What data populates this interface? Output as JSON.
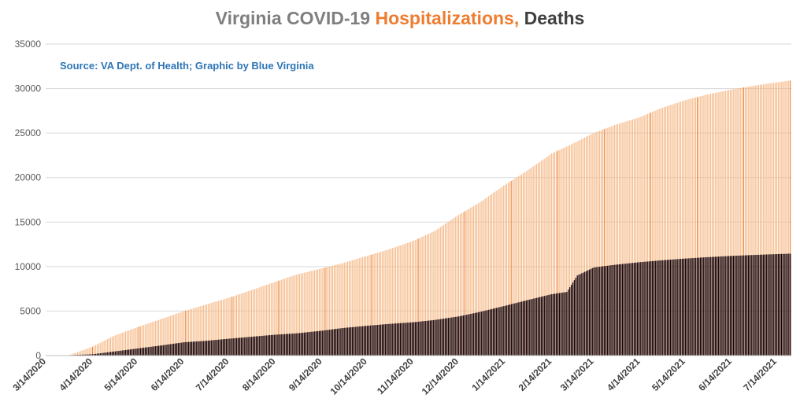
{
  "title": {
    "part1": "Virginia COVID-19 ",
    "part2": "Hospitalizations,",
    "part3": " Deaths"
  },
  "source": "Source: VA Dept. of Health; Graphic by Blue Virginia",
  "colors": {
    "title_gray": "#7f7f7f",
    "hospitalizations": "#ed7d31",
    "hospitalizations_light": "#f5b783",
    "deaths": "#1a0000",
    "source_blue": "#2e75b6",
    "dark_text": "#404040",
    "grid": "#d9d9d9"
  },
  "chart_data": {
    "type": "bar",
    "stacked": "overlapping",
    "title": "Virginia COVID-19 Hospitalizations, Deaths",
    "ylim": [
      0,
      35000
    ],
    "yticks": [
      0,
      5000,
      10000,
      15000,
      20000,
      25000,
      30000,
      35000
    ],
    "grid": true,
    "x_tick_labels": [
      "3/14/2020",
      "4/14/2020",
      "5/14/2020",
      "6/14/2020",
      "7/14/2020",
      "8/14/2020",
      "9/14/2020",
      "10/14/2020",
      "11/14/2020",
      "12/14/2020",
      "1/14/2021",
      "2/14/2021",
      "3/14/2021",
      "4/14/2021",
      "5/14/2021",
      "6/14/2021",
      "7/14/2021"
    ],
    "x_start": "3/14/2020",
    "x_end": "7/23/2021",
    "series": [
      {
        "name": "Hospitalizations",
        "points": [
          [
            "3/14/2020",
            0
          ],
          [
            "3/28/2020",
            0
          ],
          [
            "4/1/2020",
            200
          ],
          [
            "4/14/2020",
            1000
          ],
          [
            "4/28/2020",
            2200
          ],
          [
            "5/14/2020",
            3200
          ],
          [
            "5/28/2020",
            4000
          ],
          [
            "6/14/2020",
            5000
          ],
          [
            "6/28/2020",
            5700
          ],
          [
            "7/14/2020",
            6500
          ],
          [
            "7/28/2020",
            7300
          ],
          [
            "8/14/2020",
            8300
          ],
          [
            "8/28/2020",
            9100
          ],
          [
            "9/14/2020",
            9800
          ],
          [
            "9/28/2020",
            10400
          ],
          [
            "10/14/2020",
            11200
          ],
          [
            "10/28/2020",
            11900
          ],
          [
            "11/14/2020",
            12900
          ],
          [
            "11/28/2020",
            14000
          ],
          [
            "12/14/2020",
            15800
          ],
          [
            "12/28/2020",
            17200
          ],
          [
            "1/14/2021",
            19200
          ],
          [
            "1/28/2021",
            20700
          ],
          [
            "2/14/2021",
            22700
          ],
          [
            "2/28/2021",
            23800
          ],
          [
            "3/14/2021",
            25000
          ],
          [
            "3/28/2021",
            25900
          ],
          [
            "4/14/2021",
            26800
          ],
          [
            "4/28/2021",
            27800
          ],
          [
            "5/14/2021",
            28700
          ],
          [
            "5/28/2021",
            29300
          ],
          [
            "6/14/2021",
            29900
          ],
          [
            "6/28/2021",
            30300
          ],
          [
            "7/14/2021",
            30700
          ],
          [
            "7/23/2021",
            30900
          ]
        ]
      },
      {
        "name": "Deaths",
        "points": [
          [
            "3/14/2020",
            0
          ],
          [
            "3/28/2020",
            30
          ],
          [
            "4/1/2020",
            60
          ],
          [
            "4/14/2020",
            150
          ],
          [
            "4/28/2020",
            450
          ],
          [
            "5/14/2020",
            800
          ],
          [
            "5/28/2020",
            1100
          ],
          [
            "6/14/2020",
            1500
          ],
          [
            "6/28/2020",
            1650
          ],
          [
            "7/14/2020",
            1900
          ],
          [
            "7/28/2020",
            2100
          ],
          [
            "8/14/2020",
            2350
          ],
          [
            "8/28/2020",
            2500
          ],
          [
            "9/14/2020",
            2800
          ],
          [
            "9/28/2020",
            3100
          ],
          [
            "10/14/2020",
            3350
          ],
          [
            "10/28/2020",
            3550
          ],
          [
            "11/14/2020",
            3750
          ],
          [
            "11/28/2020",
            4000
          ],
          [
            "12/14/2020",
            4400
          ],
          [
            "12/28/2020",
            4900
          ],
          [
            "1/14/2021",
            5600
          ],
          [
            "1/28/2021",
            6200
          ],
          [
            "2/14/2021",
            6900
          ],
          [
            "2/24/2021",
            7150
          ],
          [
            "3/3/2021",
            9000
          ],
          [
            "3/14/2021",
            9900
          ],
          [
            "3/28/2021",
            10200
          ],
          [
            "4/14/2021",
            10500
          ],
          [
            "4/28/2021",
            10700
          ],
          [
            "5/14/2021",
            10900
          ],
          [
            "5/28/2021",
            11050
          ],
          [
            "6/14/2021",
            11200
          ],
          [
            "6/28/2021",
            11300
          ],
          [
            "7/14/2021",
            11400
          ],
          [
            "7/23/2021",
            11450
          ]
        ]
      }
    ]
  }
}
